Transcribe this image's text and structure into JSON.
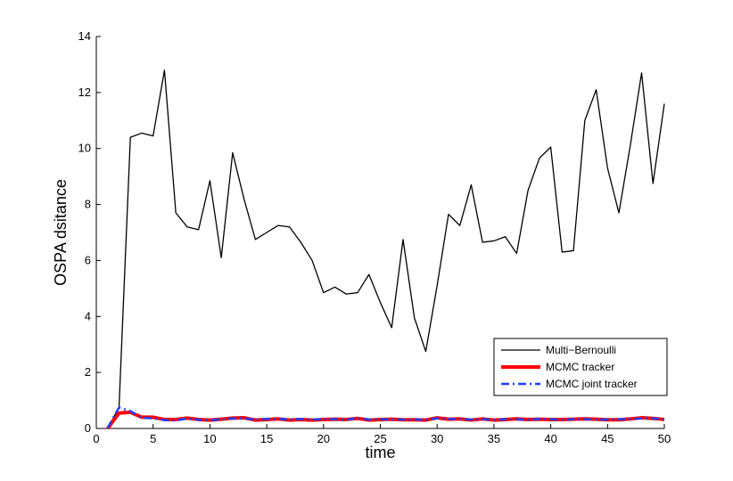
{
  "chart_data": {
    "type": "line",
    "xlabel": "time",
    "ylabel": "OSPA dsitance",
    "xlim": [
      0,
      50
    ],
    "ylim": [
      0,
      14
    ],
    "xticks": [
      0,
      5,
      10,
      15,
      20,
      25,
      30,
      35,
      40,
      45,
      50
    ],
    "yticks": [
      0,
      2,
      4,
      6,
      8,
      10,
      12,
      14
    ],
    "grid": false,
    "legend_position": "bottom-right",
    "series": [
      {
        "name": "Multi−Bernoulli",
        "color": "#000000",
        "style": "solid",
        "x": [
          1,
          2,
          3,
          4,
          5,
          6,
          7,
          8,
          9,
          10,
          11,
          12,
          13,
          14,
          15,
          16,
          17,
          18,
          19,
          20,
          21,
          22,
          23,
          24,
          25,
          26,
          27,
          28,
          29,
          30,
          31,
          32,
          33,
          34,
          35,
          36,
          37,
          38,
          39,
          40,
          41,
          42,
          43,
          44,
          45,
          46,
          47,
          48,
          49,
          50
        ],
        "values": [
          0,
          0.75,
          10.4,
          10.55,
          10.45,
          12.8,
          7.7,
          7.2,
          7.1,
          8.85,
          6.1,
          9.85,
          8.2,
          6.75,
          7.0,
          7.25,
          7.2,
          6.65,
          6.0,
          4.85,
          5.05,
          4.8,
          4.85,
          5.5,
          4.5,
          3.6,
          6.75,
          3.95,
          2.75,
          5.1,
          7.65,
          7.25,
          8.7,
          6.65,
          6.7,
          6.85,
          6.25,
          8.5,
          9.65,
          10.05,
          6.3,
          6.35,
          11.0,
          12.1,
          9.3,
          7.7,
          10.1,
          12.7,
          8.75,
          11.6
        ]
      },
      {
        "name": "MCMC tracker",
        "color": "#ff0000",
        "style": "solid-thick",
        "x": [
          1,
          2,
          3,
          4,
          5,
          6,
          7,
          8,
          9,
          10,
          11,
          12,
          13,
          14,
          15,
          16,
          17,
          18,
          19,
          20,
          21,
          22,
          23,
          24,
          25,
          26,
          27,
          28,
          29,
          30,
          31,
          32,
          33,
          34,
          35,
          36,
          37,
          38,
          39,
          40,
          41,
          42,
          43,
          44,
          45,
          46,
          47,
          48,
          49,
          50
        ],
        "values": [
          0,
          0.55,
          0.58,
          0.4,
          0.4,
          0.32,
          0.32,
          0.37,
          0.32,
          0.3,
          0.33,
          0.37,
          0.38,
          0.3,
          0.32,
          0.34,
          0.3,
          0.32,
          0.3,
          0.32,
          0.33,
          0.32,
          0.36,
          0.3,
          0.32,
          0.33,
          0.31,
          0.31,
          0.3,
          0.38,
          0.33,
          0.34,
          0.3,
          0.34,
          0.3,
          0.32,
          0.34,
          0.32,
          0.33,
          0.32,
          0.32,
          0.33,
          0.34,
          0.33,
          0.31,
          0.31,
          0.34,
          0.38,
          0.36,
          0.32
        ]
      },
      {
        "name": "MCMC joint tracker",
        "color": "#1f3fff",
        "style": "dash-dot",
        "x": [
          1,
          2,
          3,
          4,
          5,
          6,
          7,
          8,
          9,
          10,
          11,
          12,
          13,
          14,
          15,
          16,
          17,
          18,
          19,
          20,
          21,
          22,
          23,
          24,
          25,
          26,
          27,
          28,
          29,
          30,
          31,
          32,
          33,
          34,
          35,
          36,
          37,
          38,
          39,
          40,
          41,
          42,
          43,
          44,
          45,
          46,
          47,
          48,
          49,
          50
        ],
        "values": [
          0.02,
          0.75,
          0.62,
          0.38,
          0.36,
          0.3,
          0.28,
          0.36,
          0.31,
          0.3,
          0.32,
          0.36,
          0.36,
          0.32,
          0.34,
          0.34,
          0.32,
          0.34,
          0.32,
          0.33,
          0.33,
          0.31,
          0.37,
          0.32,
          0.33,
          0.32,
          0.32,
          0.32,
          0.31,
          0.36,
          0.34,
          0.33,
          0.32,
          0.33,
          0.31,
          0.33,
          0.33,
          0.31,
          0.34,
          0.33,
          0.31,
          0.33,
          0.33,
          0.32,
          0.32,
          0.33,
          0.33,
          0.36,
          0.36,
          0.33
        ]
      }
    ]
  }
}
